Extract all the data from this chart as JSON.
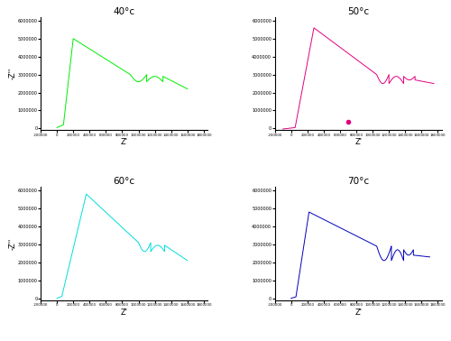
{
  "title_40": "40°c",
  "title_50": "50°c",
  "title_60": "60°c",
  "title_70": "70°c",
  "color_40": "#00EE00",
  "color_50": "#E0007F",
  "color_60": "#00DDDD",
  "color_70": "#0000BB",
  "xlabel": "Z'",
  "ylabel": "-Z''",
  "xmin": -200000,
  "xmax": 1850000,
  "ymin": -100000,
  "ymax": 6200000,
  "xticks": [
    -200000,
    0,
    200000,
    400000,
    600000,
    800000,
    1000000,
    1200000,
    1400000,
    1600000,
    1800000
  ],
  "yticks": [
    0,
    1000000,
    2000000,
    3000000,
    4000000,
    5000000,
    6000000
  ],
  "marker_50_x": 700000,
  "marker_50_y": 350000
}
